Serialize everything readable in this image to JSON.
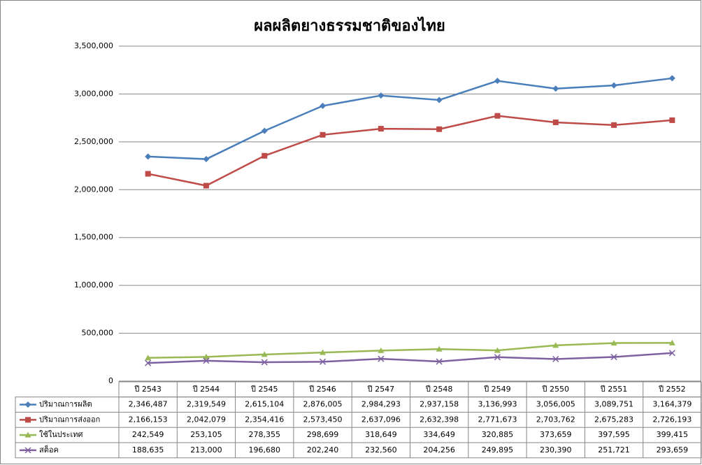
{
  "chart_data": {
    "type": "line",
    "title": "ผลผลิตยางธรรมชาติของไทย",
    "categories": [
      "ปี 2543",
      "ปี 2544",
      "ปี 2545",
      "ปี 2546",
      "ปี 2547",
      "ปี 2548",
      "ปี 2549",
      "ปี 2550",
      "ปี 2551",
      "ปี 2552"
    ],
    "series": [
      {
        "name": "ปริมาณการผลิต",
        "color": "#4a7ebb",
        "marker": "diamond",
        "values": [
          2346487,
          2319549,
          2615104,
          2876005,
          2984293,
          2937158,
          3136993,
          3056005,
          3089751,
          3164379
        ],
        "value_labels": [
          "2,346,487",
          "2,319,549",
          "2,615,104",
          "2,876,005",
          "2,984,293",
          "2,937,158",
          "3,136,993",
          "3,056,005",
          "3,089,751",
          "3,164,379"
        ]
      },
      {
        "name": "ปริมาณการส่งออก",
        "color": "#be4b48",
        "marker": "square",
        "values": [
          2166153,
          2042079,
          2354416,
          2573450,
          2637096,
          2632398,
          2771673,
          2703762,
          2675283,
          2726193
        ],
        "value_labels": [
          "2,166,153",
          "2,042,079",
          "2,354,416",
          "2,573,450",
          "2,637,096",
          "2,632,398",
          "2,771,673",
          "2,703,762",
          "2,675,283",
          "2,726,193"
        ]
      },
      {
        "name": "ใช้ในประเทศ",
        "color": "#98b954",
        "marker": "triangle",
        "values": [
          242549,
          253105,
          278355,
          298699,
          318649,
          334649,
          320885,
          373659,
          397595,
          399415
        ],
        "value_labels": [
          "242,549",
          "253,105",
          "278,355",
          "298,699",
          "318,649",
          "334,649",
          "320,885",
          "373,659",
          "397,595",
          "399,415"
        ]
      },
      {
        "name": "สต็อค",
        "color": "#7d60a0",
        "marker": "x",
        "values": [
          188635,
          213000,
          196680,
          202240,
          232560,
          204256,
          249895,
          230390,
          251721,
          293659
        ],
        "value_labels": [
          "188,635",
          "213,000",
          "196,680",
          "202,240",
          "232,560",
          "204,256",
          "249,895",
          "230,390",
          "251,721",
          "293,659"
        ]
      }
    ],
    "ylim": [
      0,
      3500000
    ],
    "yticks": [
      0,
      {
        "value": 500000,
        "label": "500,000"
      },
      {
        "value": 1000000,
        "label": "1,000,000"
      },
      {
        "value": 1500000,
        "label": "1,500,000"
      },
      {
        "value": 2000000,
        "label": "2,000,000"
      },
      {
        "value": 2500000,
        "label": "2,500,000"
      },
      {
        "value": 3000000,
        "label": "3,000,000"
      },
      {
        "value": 3500000,
        "label": "3,500,000"
      }
    ],
    "grid": true
  }
}
